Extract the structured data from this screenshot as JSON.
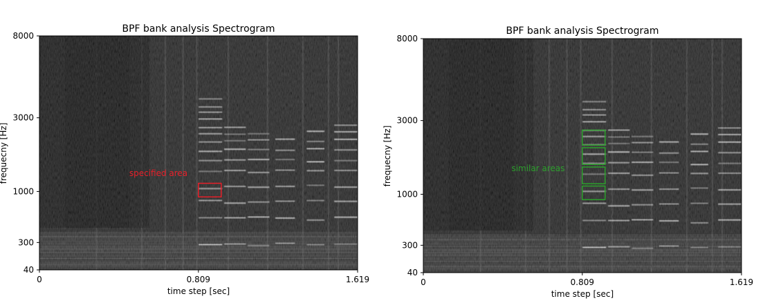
{
  "chart_data": [
    {
      "type": "heatmap",
      "title": "BPF bank analysis Spectrogram",
      "xlabel": "time step [sec]",
      "ylabel": "frequecny [Hz]",
      "xlim": [
        0,
        1.619
      ],
      "ylim": [
        40,
        8000
      ],
      "x_ticks": [
        "0",
        "0.809",
        "1.619"
      ],
      "y_ticks": [
        "40",
        "300",
        "1000",
        "3000",
        "8000"
      ],
      "colormap": "grayscale",
      "annotation": {
        "text": "specified area",
        "color": "#e8202a",
        "boxes": [
          {
            "t0": 0.809,
            "t1": 0.925,
            "f0": 880,
            "f1": 1130
          }
        ]
      }
    },
    {
      "type": "heatmap",
      "title": "BPF bank analysis Spectrogram",
      "xlabel": "time step [sec]",
      "ylabel": "frequecny [Hz]",
      "xlim": [
        0,
        1.619
      ],
      "ylim": [
        40,
        8000
      ],
      "x_ticks": [
        "0",
        "0.809",
        "1.619"
      ],
      "y_ticks": [
        "40",
        "300",
        "1000",
        "3000",
        "8000"
      ],
      "colormap": "grayscale",
      "annotation": {
        "text": "similar areas",
        "color": "#2ca02c",
        "boxes": [
          {
            "t0": 0.809,
            "t1": 0.925,
            "f0": 880,
            "f1": 1130
          },
          {
            "t0": 0.809,
            "t1": 0.925,
            "f0": 1170,
            "f1": 1500
          },
          {
            "t0": 0.809,
            "t1": 0.925,
            "f0": 1560,
            "f1": 2000
          },
          {
            "t0": 0.809,
            "t1": 0.925,
            "f0": 2080,
            "f1": 2600
          }
        ]
      }
    }
  ]
}
